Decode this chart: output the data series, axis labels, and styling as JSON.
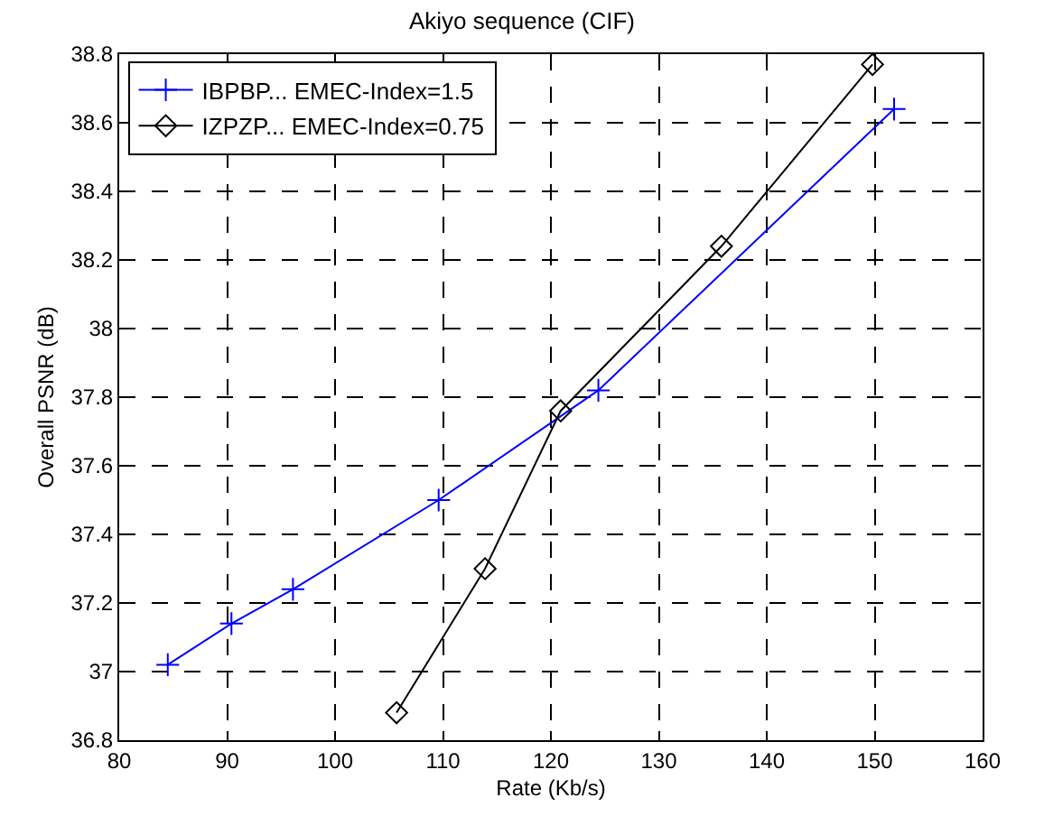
{
  "chart_data": {
    "type": "line",
    "title": "Akiyo sequence (CIF)",
    "xlabel": "Rate (Kb/s)",
    "ylabel": "Overall PSNR (dB)",
    "series": [
      {
        "name": "IBPBP... EMEC-Index=1.5",
        "color": "#0000ff",
        "marker": "cross",
        "x": [
          84.5,
          90.4,
          96.1,
          109.6,
          124.4,
          151.8
        ],
        "values": [
          37.02,
          37.14,
          37.24,
          37.5,
          37.82,
          38.64
        ]
      },
      {
        "name": "IZPZP... EMEC-Index=0.75",
        "color": "#000000",
        "marker": "diamond",
        "x": [
          105.7,
          113.9,
          120.9,
          135.8,
          149.8
        ],
        "values": [
          36.88,
          37.3,
          37.76,
          38.24,
          38.77
        ]
      }
    ],
    "xlim": [
      80,
      160
    ],
    "xticks": [
      80,
      90,
      100,
      110,
      120,
      130,
      140,
      150,
      160
    ],
    "ylim": [
      36.8,
      38.8
    ],
    "yticks": [
      {
        "value": 36.8,
        "label": "36.8"
      },
      {
        "value": 37,
        "label": "37"
      },
      {
        "value": 37.2,
        "label": "37.2"
      },
      {
        "value": 37.4,
        "label": "37.4"
      },
      {
        "value": 37.6,
        "label": "37.6"
      },
      {
        "value": 37.8,
        "label": "37.8"
      },
      {
        "value": 38,
        "label": "38"
      },
      {
        "value": 38.2,
        "label": "38.2"
      },
      {
        "value": 38.4,
        "label": "38.4"
      },
      {
        "value": 38.6,
        "label": "38.6"
      },
      {
        "value": 38.8,
        "label": "38.8"
      }
    ],
    "grid": true,
    "legend": "top left",
    "line_style": "solid"
  }
}
